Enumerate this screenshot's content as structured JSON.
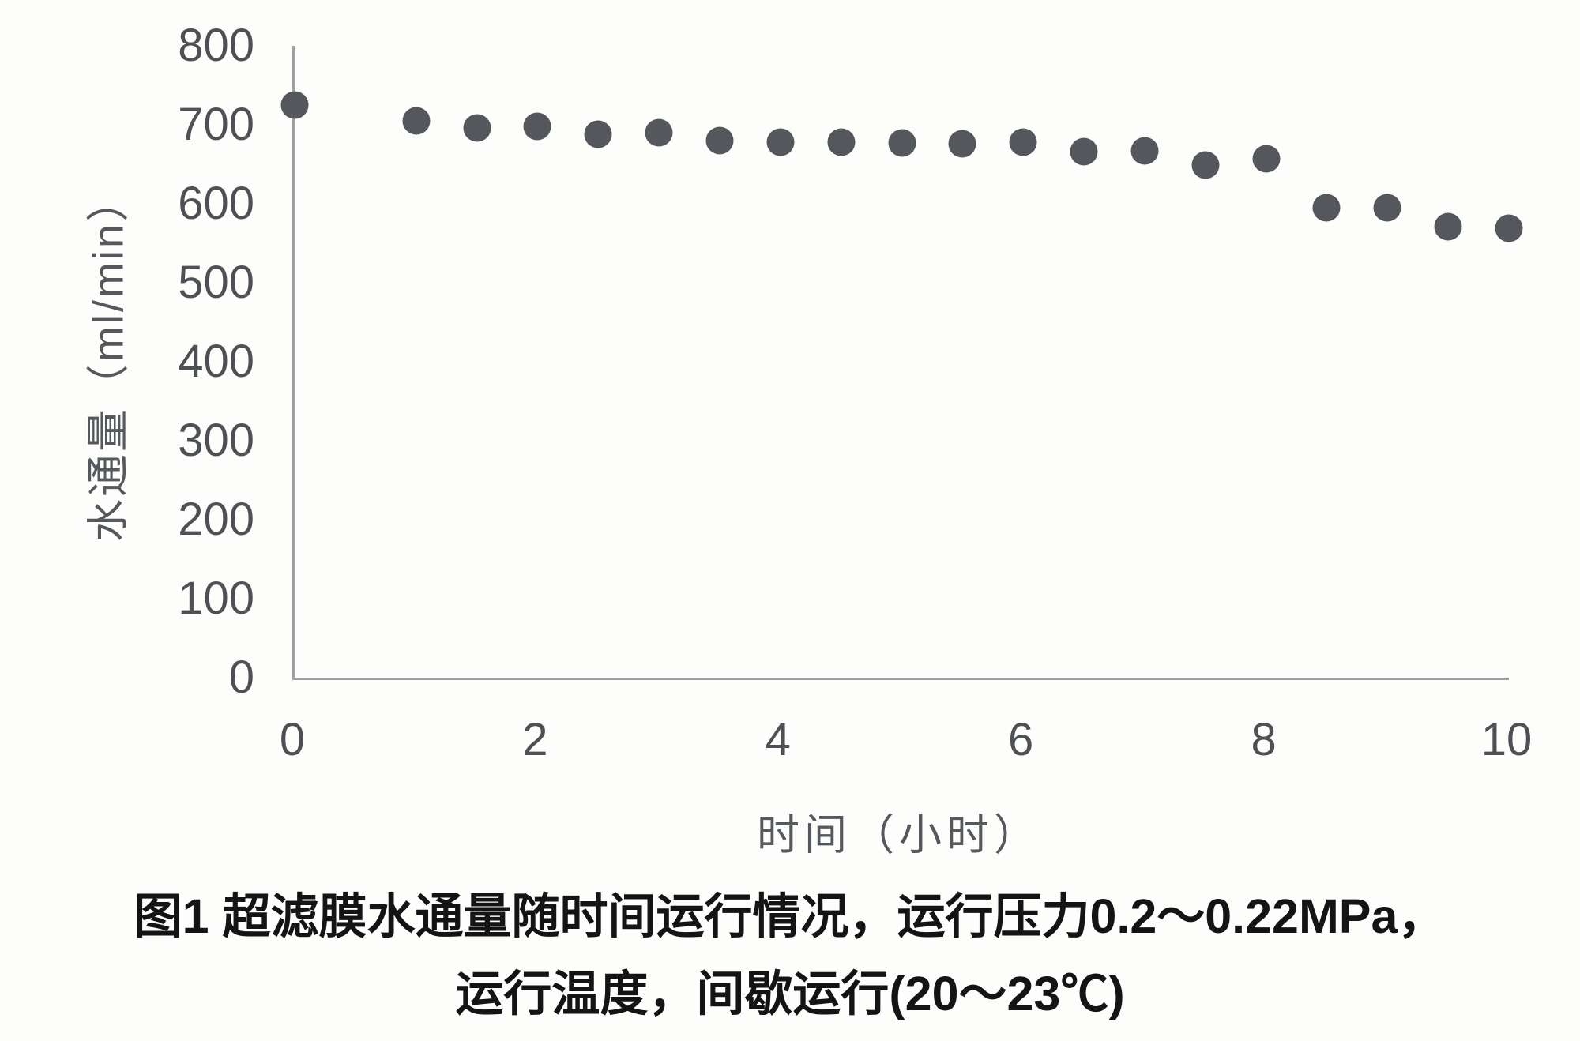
{
  "chart_data": {
    "type": "scatter",
    "title": "",
    "xlabel": "时间（小时）",
    "ylabel": "水通量（ml/min）",
    "xlim": [
      0,
      10
    ],
    "ylim": [
      0,
      800
    ],
    "x_ticks": [
      0,
      2,
      4,
      6,
      8,
      10
    ],
    "y_ticks": [
      0,
      100,
      200,
      300,
      400,
      500,
      600,
      700,
      800
    ],
    "grid": false,
    "legend": "none",
    "marker_size_px": 35,
    "series": [
      {
        "name": "水通量",
        "points": [
          {
            "x": 0,
            "y": 725
          },
          {
            "x": 1,
            "y": 705
          },
          {
            "x": 1.5,
            "y": 696
          },
          {
            "x": 2,
            "y": 698
          },
          {
            "x": 2.5,
            "y": 688
          },
          {
            "x": 3,
            "y": 690
          },
          {
            "x": 3.5,
            "y": 680
          },
          {
            "x": 4,
            "y": 678
          },
          {
            "x": 4.5,
            "y": 678
          },
          {
            "x": 5,
            "y": 677
          },
          {
            "x": 5.5,
            "y": 676
          },
          {
            "x": 6,
            "y": 678
          },
          {
            "x": 6.5,
            "y": 666
          },
          {
            "x": 7,
            "y": 667
          },
          {
            "x": 7.5,
            "y": 649
          },
          {
            "x": 8,
            "y": 657
          },
          {
            "x": 8.5,
            "y": 595
          },
          {
            "x": 9,
            "y": 595
          },
          {
            "x": 9.5,
            "y": 571
          },
          {
            "x": 10,
            "y": 569
          }
        ]
      }
    ]
  },
  "caption": {
    "line1": "图1 超滤膜水通量随时间运行情况，运行压力0.2～0.22MPa，",
    "line2": "运行温度，间歇运行(20～23℃)"
  },
  "colors": {
    "dot": "#54575b",
    "axis_line": "#a0a0a0",
    "tick_label": "#4d5156",
    "axis_title": "#55585c",
    "caption_text": "#141414",
    "background": "#fdfdfc"
  }
}
